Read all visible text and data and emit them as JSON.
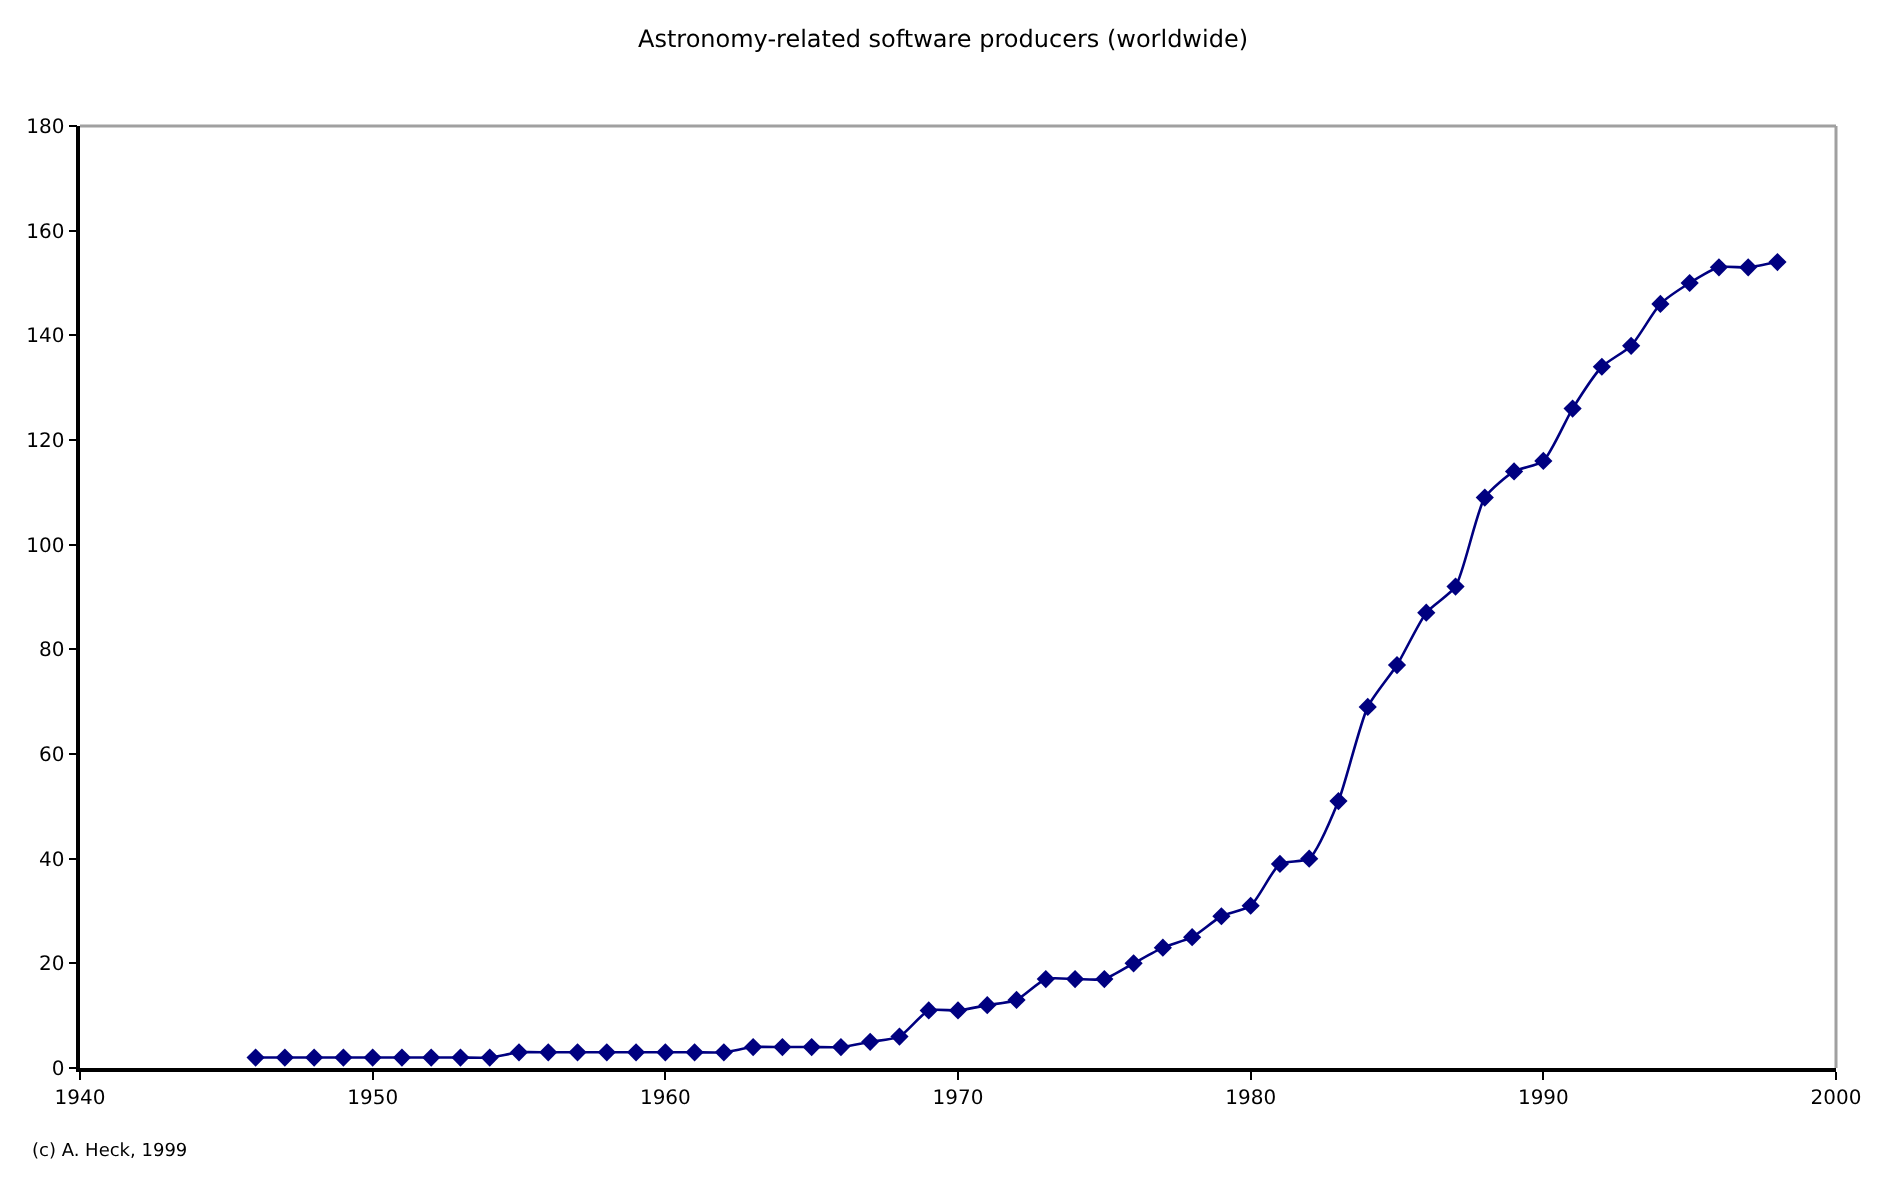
{
  "chart_data": {
    "type": "line",
    "title": "Astronomy-related software producers (worldwide)",
    "x": [
      1946,
      1947,
      1948,
      1949,
      1950,
      1951,
      1952,
      1953,
      1954,
      1955,
      1956,
      1957,
      1958,
      1959,
      1960,
      1961,
      1962,
      1963,
      1964,
      1965,
      1966,
      1967,
      1968,
      1969,
      1970,
      1971,
      1972,
      1973,
      1974,
      1975,
      1976,
      1977,
      1978,
      1979,
      1980,
      1981,
      1982,
      1983,
      1984,
      1985,
      1986,
      1987,
      1988,
      1989,
      1990,
      1991,
      1992,
      1993,
      1994,
      1995,
      1996,
      1997,
      1998
    ],
    "series": [
      {
        "color": "#000080",
        "values": [
          2,
          2,
          2,
          2,
          2,
          2,
          2,
          2,
          2,
          3,
          3,
          3,
          3,
          3,
          3,
          3,
          3,
          4,
          4,
          4,
          4,
          5,
          6,
          11,
          11,
          12,
          13,
          17,
          17,
          17,
          20,
          23,
          25,
          29,
          31,
          39,
          40,
          51,
          69,
          77,
          87,
          92,
          109,
          114,
          116,
          126,
          134,
          138,
          146,
          150,
          153,
          153,
          154
        ]
      }
    ],
    "xlim": [
      1940,
      2000
    ],
    "xticks": [
      1940,
      1950,
      1960,
      1970,
      1980,
      1990,
      2000
    ],
    "ylim": [
      0,
      180
    ],
    "yticks": [
      0,
      20,
      40,
      60,
      80,
      100,
      120,
      140,
      160,
      180
    ],
    "marker": "diamond",
    "line_style": "solid",
    "annotations": [
      "(c) A. Heck, 1999"
    ]
  }
}
